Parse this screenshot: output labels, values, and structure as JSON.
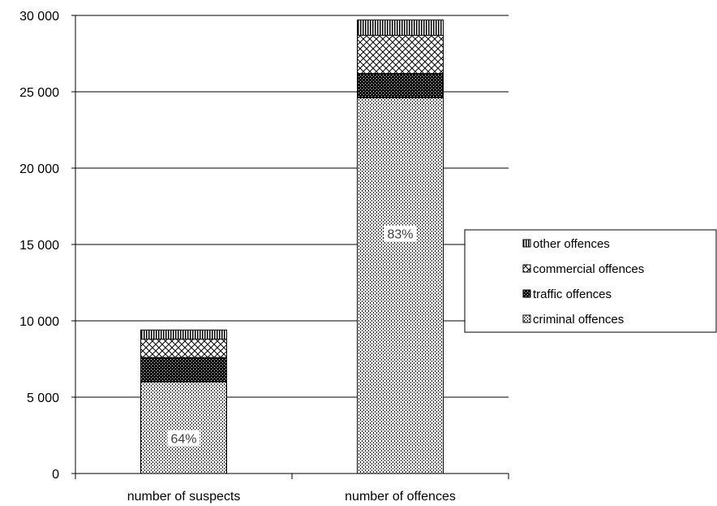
{
  "chart_data": {
    "type": "bar",
    "stacked": true,
    "categories": [
      "number  of suspects",
      "number  of offences"
    ],
    "series": [
      {
        "name": "criminal offences",
        "values": [
          6000,
          24600
        ],
        "pattern": "dots"
      },
      {
        "name": "traffic offences",
        "values": [
          1600,
          1600
        ],
        "pattern": "dense-check"
      },
      {
        "name": "commercial offences",
        "values": [
          1200,
          2500
        ],
        "pattern": "crosshatch"
      },
      {
        "name": "other offences",
        "values": [
          600,
          1000
        ],
        "pattern": "vertical-lines"
      }
    ],
    "data_labels": [
      "64%",
      "83%"
    ],
    "ylim": [
      0,
      30000
    ],
    "yticks": [
      0,
      5000,
      10000,
      15000,
      20000,
      25000,
      30000
    ],
    "ytick_labels": [
      "0",
      "5 000",
      "10 000",
      "15 000",
      "20 000",
      "25 000",
      "30 000"
    ],
    "grid": true,
    "legend_position": "right",
    "legend_order": [
      "other offences",
      "commercial offences",
      "traffic offences",
      "criminal offences"
    ],
    "colors": {
      "stroke": "#000000",
      "grid": "#000000",
      "background": "#ffffff",
      "data_label": "#404040"
    }
  }
}
